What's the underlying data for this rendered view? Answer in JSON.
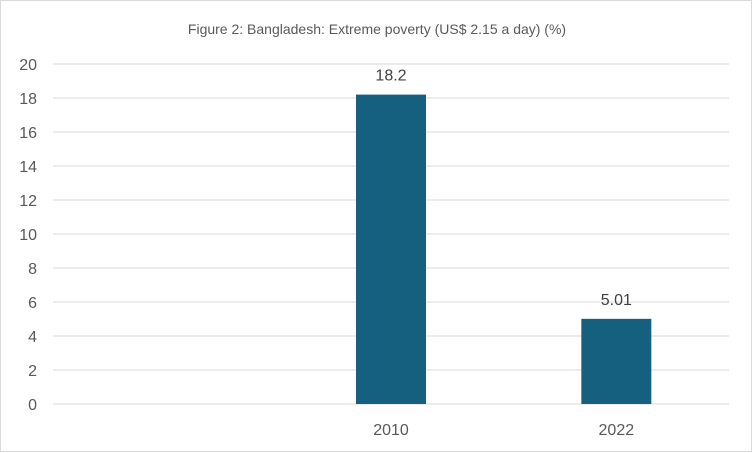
{
  "chart_data": {
    "type": "bar",
    "title": "Figure 2: Bangladesh: Extreme poverty (US$ 2.15 a day) (%)",
    "categories": [
      "",
      "2010",
      "2022"
    ],
    "values": [
      null,
      18.2,
      5.01
    ],
    "data_labels": [
      "",
      "18.2",
      "5.01"
    ],
    "y_ticks": [
      0,
      2,
      4,
      6,
      8,
      10,
      12,
      14,
      16,
      18,
      20
    ],
    "ylim": [
      0,
      20
    ],
    "grid": true,
    "legend": "none",
    "bar_color": "#16607F"
  }
}
